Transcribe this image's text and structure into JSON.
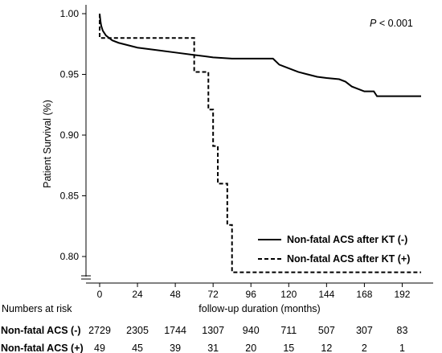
{
  "chart_data": {
    "type": "line",
    "title": "",
    "xlabel": "follow-up duration (months)",
    "ylabel": "Patient Survival (%)",
    "xlim": [
      -8,
      210
    ],
    "ylim": [
      0.775,
      1.005
    ],
    "xticks": [
      0,
      24,
      48,
      72,
      96,
      120,
      144,
      168,
      192
    ],
    "yticks": [
      0.8,
      0.85,
      0.9,
      0.95,
      1.0
    ],
    "ytick_labels": [
      "0.80",
      "0.85",
      "0.90",
      "0.95",
      "1.00"
    ],
    "axis_break": true,
    "legend_position": "bottom-right",
    "annotation": {
      "italic": "P",
      "text": " < 0.001"
    },
    "series": [
      {
        "name": "Non-fatal ACS after KT (-)",
        "line_style": "solid",
        "color": "#000000",
        "points": [
          [
            0,
            1.0
          ],
          [
            0.5,
            0.994
          ],
          [
            1,
            0.99
          ],
          [
            2,
            0.986
          ],
          [
            3,
            0.984
          ],
          [
            4,
            0.982
          ],
          [
            6,
            0.98
          ],
          [
            8,
            0.978
          ],
          [
            12,
            0.976
          ],
          [
            18,
            0.974
          ],
          [
            24,
            0.972
          ],
          [
            36,
            0.97
          ],
          [
            48,
            0.968
          ],
          [
            60,
            0.966
          ],
          [
            72,
            0.964
          ],
          [
            84,
            0.963
          ],
          [
            96,
            0.963
          ],
          [
            110,
            0.963
          ],
          [
            114,
            0.958
          ],
          [
            120,
            0.955
          ],
          [
            126,
            0.952
          ],
          [
            132,
            0.95
          ],
          [
            138,
            0.948
          ],
          [
            144,
            0.947
          ],
          [
            152,
            0.946
          ],
          [
            156,
            0.944
          ],
          [
            160,
            0.94
          ],
          [
            168,
            0.936
          ],
          [
            174,
            0.936
          ],
          [
            176,
            0.932
          ],
          [
            204,
            0.932
          ]
        ]
      },
      {
        "name": "Non-fatal ACS after KT (+)",
        "line_style": "dashed",
        "color": "#000000",
        "points": [
          [
            0,
            1.0
          ],
          [
            0,
            0.98
          ],
          [
            60,
            0.98
          ],
          [
            60,
            0.952
          ],
          [
            69,
            0.952
          ],
          [
            69,
            0.921
          ],
          [
            72,
            0.921
          ],
          [
            72,
            0.891
          ],
          [
            75,
            0.891
          ],
          [
            75,
            0.86
          ],
          [
            81,
            0.86
          ],
          [
            81,
            0.826
          ],
          [
            84,
            0.826
          ],
          [
            84,
            0.787
          ],
          [
            204,
            0.787
          ]
        ]
      }
    ],
    "risk_table": {
      "title": "Numbers at risk",
      "rows": [
        {
          "label": "Non-fatal ACS (-)",
          "values": [
            "2729",
            "2305",
            "1744",
            "1307",
            "940",
            "711",
            "507",
            "307",
            "83"
          ]
        },
        {
          "label": "Non-fatal ACS (+)",
          "values": [
            "49",
            "45",
            "39",
            "31",
            "20",
            "15",
            "12",
            "2",
            "1"
          ]
        }
      ]
    }
  }
}
